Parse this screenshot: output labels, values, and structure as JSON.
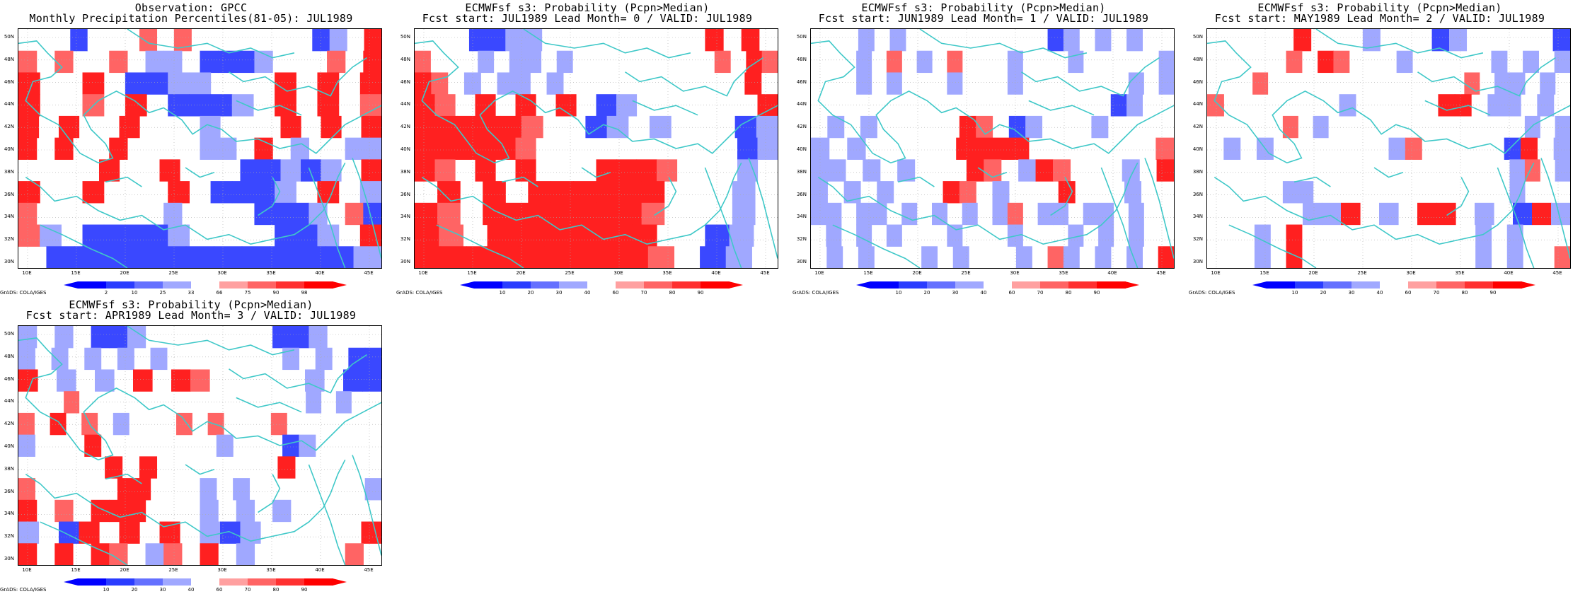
{
  "panels": [
    {
      "title_line1": "Observation: GPCC",
      "title_line2": "Monthly Precipitation Percentiles(81-05): JUL1989",
      "colorbar_labels": [
        "2",
        "10",
        "25",
        "33",
        "66",
        "75",
        "90",
        "98"
      ],
      "credit": "GrADS: COLA/IGES",
      "grid": [
        "0w0L1101R0R0w0w0w0L1L0RR",
        "R0R00R0LL0L1L1L1L0w0R0RR",
        "RR00RR0L1L1LL0wwRR0RR0RR",
        "RR00R0RR0L1L1L1L0RR0RR0R",
        "RR0RR00RR0w0L0w0RR0RR0RR",
        "RR0RR00RR0ww0LL0RR0L0wLL",
        "0w00RR00RR0w0L1L1LL1L0RR",
        "RR00RR0w0RR0L1L1L1L0RR0L",
        "R000ww00L0ww0L1L1L1L0RL1",
        "RL0L1L1L1L1L0ww0L1L1L0RR",
        "0L1L1L1L1L1L1L1L1L1L1L1L"
      ]
    },
    {
      "title_line1": "ECMWFsf s3: Probability (Pcpn>Median)",
      "title_line2": "Fcst start: JUL1989  Lead Month= 0 / VALID: JUL1989",
      "colorbar_labels": [
        "10",
        "20",
        "30",
        "40",
        "60",
        "70",
        "80",
        "90"
      ],
      "credit": "GrADS: COLA/IGES",
      "grid": [
        "0w0L1L1LL0w0w0w0w0RR0RR1",
        "R0w0L0LL0L0w0w0w0w0R0RRR",
        "RRR0L0LL0L0w0w0w0w0w0RR0",
        "RRR0RR0RR0RR0L1L0ww0w0RR",
        "RRRRRRRRRRRw0L1L0L0w0L1L",
        "RRRRRRRRRRRw0w0w0w0w0L1L",
        "RRR0RR0RR0w0RRRRRRR0w0L0",
        "0RR0RR0RRRRRRRRRRRR0w0L0",
        "RRR0RRRRRRRRRRRRRRR0w0L0",
        "RRR0RRRRRRRRRRRRRR00L1L0",
        "RRRRRRRRRRRRRRRRRRR0L1L0"
      ]
    },
    {
      "title_line1": "ECMWFsf s3: Probability (Pcpn>Median)",
      "title_line2": "Fcst start: JUN1989  Lead Month= 1 / VALID: JUL1989",
      "colorbar_labels": [
        "10",
        "20",
        "30",
        "40",
        "60",
        "70",
        "80",
        "90"
      ],
      "credit": "GrADS: COLA/IGES",
      "grid": [
        "0w0L0L0w0w0w0w0L1L0L0L0w",
        "0w0L0R0L0R0w0L0w0L0w0w0L",
        "0w0L0L0w0L0w0L0w0w0w0L0L",
        "0w0w0w0w0w0w0w0w0w0L1L0w",
        "0L0L0w0w0RRR0L1L0w0L0w0w",
        "L0L0w0w0RRRRRRRR0w0w0w0R",
        "LL0L0L0w0RRR0LRRR0w0L0RR",
        "L0L0L0w0RRR0L0w0RR0w0L0w",
        "LL0LL0L0L0L0LR0LL0LL0L0w",
        "0L0L0L0w0L0w0L0w0L0L0L0w",
        "0L0L0w0L0L0w0L0RL0L0L0RR"
      ]
    },
    {
      "title_line1": "ECMWFsf s3: Probability (Pcpn>Median)",
      "title_line2": "Fcst start: MAY1989  Lead Month= 2 / VALID: JUL1989",
      "colorbar_labels": [
        "10",
        "20",
        "30",
        "40",
        "60",
        "70",
        "80",
        "90"
      ],
      "credit": "GrADS: COLA/IGES",
      "grid": [
        "0w0w0RR0w0L0w0L1L0w0w0L1",
        "0w0w0R0RRR0w0L0w0w0L0L0L",
        "0w0R0w0w0w0w0w0w0R0LL0L0",
        "R0w0w0w0L0w0w0RRRR0LL0L0",
        "0w0w0R0L0w0w0w0w0w0w0L0L",
        "0L0L0w0w0w0LR0w0w0L1RR0L",
        "0w0w0w0w0w0w0w0w0w0wLR0L",
        "0w0w0LL0w0w0w0w0w0w0L0w0",
        "0w0w0LLRR0L0RRRR0L0L1RRL",
        "0w0L0RR0w0w0w0w0w0L0L0w0",
        "0w0L0RR0w0w0w0w0w0L0L0wR"
      ]
    },
    {
      "title_line1": "ECMWFsf s3: Probability (Pcpn>Median)",
      "title_line2": "Fcst start: APR1989  Lead Month= 3 / VALID: JUL1989",
      "colorbar_labels": [
        "10",
        "20",
        "30",
        "40",
        "60",
        "70",
        "80",
        "90"
      ],
      "credit": "GrADS: COLA/IGES",
      "grid": [
        "L0L0L1L1L0w0w0w0L1L1L0w0",
        "L0L0L0L0L0w0w0w0L0L0L1L1",
        "RR0L0L0RR0RRR0w0w0L0L1L1",
        "0w0R0w0w0w0w0w0w0w0L0L0w",
        "R0RR0R0L0w0R0R0w0R0w0w0w",
        "L0w0RR0w0w0w0L0w0L1L0w0w",
        "0w0w0RR0RR0w0w0w0RR0w0w0",
        "R0w0w0RRRR0w0L0L0w0w0w0L",
        "RR0R0RRRRRR0w0L0L0L0w0w0",
        "L0L1RR0RR0RR0LL1L0w0w0RR",
        "RR0RR0RRR0LR0RR0L0w0w0R0"
      ]
    }
  ],
  "axes": {
    "ylabels": [
      "50N",
      "48N",
      "46N",
      "44N",
      "42N",
      "40N",
      "38N",
      "36N",
      "34N",
      "32N",
      "30N"
    ],
    "xlabels": [
      "10E",
      "15E",
      "20E",
      "25E",
      "30E",
      "35E",
      "40E",
      "45E"
    ]
  },
  "colors": {
    "R": "#ff6464",
    "RR": "#ff2020",
    "L": "#a0a8ff",
    "L1": "#3a48ff",
    "w": "#ffffff",
    "coast": "#3fc8c8",
    "grid": "#aaaaaa"
  }
}
